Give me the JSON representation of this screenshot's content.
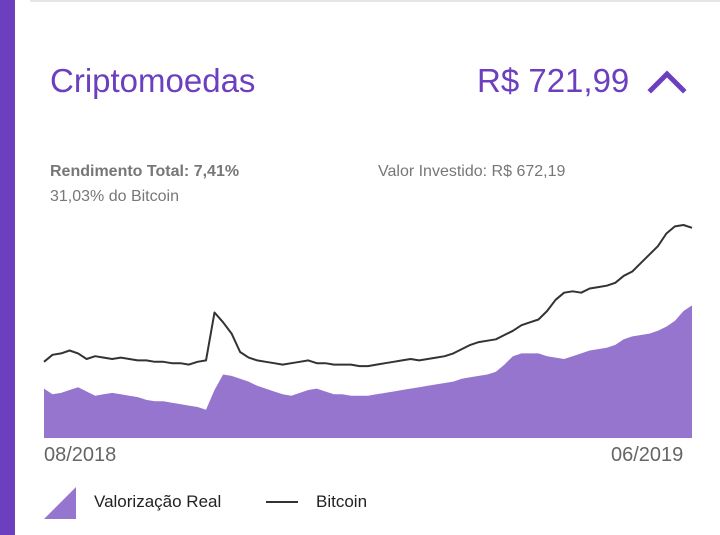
{
  "card": {
    "title": "Criptomoedas",
    "amount": "R$ 721,99",
    "rendimento": "Rendimento Total: 7,41%",
    "bitcoin_pct": "31,03% do Bitcoin",
    "valor_investido": "Valor Investido: R$ 672,19"
  },
  "colors": {
    "accent": "#6c3fbf",
    "area": "#9575cd",
    "line": "#333333"
  },
  "chart_data": {
    "type": "area",
    "x_start_label": "08/2018",
    "x_end_label": "06/2019",
    "series": [
      {
        "name": "Valorização Real",
        "style": "area",
        "values": [
          35,
          31,
          32,
          34,
          36,
          33,
          30,
          31,
          32,
          31,
          30,
          29,
          27,
          26,
          26,
          25,
          24,
          23,
          22,
          20,
          34,
          45,
          44,
          42,
          40,
          37,
          35,
          33,
          31,
          30,
          32,
          34,
          35,
          33,
          31,
          31,
          30,
          30,
          30,
          31,
          32,
          33,
          34,
          35,
          36,
          37,
          38,
          39,
          40,
          42,
          43,
          44,
          45,
          47,
          52,
          58,
          60,
          60,
          60,
          58,
          57,
          56,
          58,
          60,
          62,
          63,
          64,
          66,
          70,
          72,
          73,
          74,
          76,
          79,
          83,
          90,
          94
        ]
      },
      {
        "name": "Bitcoin",
        "style": "line",
        "values": [
          54,
          59,
          60,
          62,
          60,
          56,
          58,
          57,
          56,
          57,
          56,
          55,
          55,
          54,
          54,
          53,
          53,
          52,
          54,
          55,
          89,
          82,
          74,
          61,
          57,
          55,
          54,
          53,
          52,
          53,
          54,
          55,
          53,
          53,
          52,
          52,
          52,
          51,
          51,
          52,
          53,
          54,
          55,
          56,
          55,
          56,
          57,
          58,
          60,
          63,
          66,
          68,
          69,
          70,
          73,
          76,
          80,
          82,
          84,
          90,
          98,
          103,
          104,
          103,
          106,
          107,
          108,
          110,
          115,
          118,
          124,
          130,
          136,
          145,
          150,
          151,
          149
        ]
      }
    ]
  },
  "legend": {
    "area_label": "Valorização Real",
    "line_label": "Bitcoin"
  }
}
